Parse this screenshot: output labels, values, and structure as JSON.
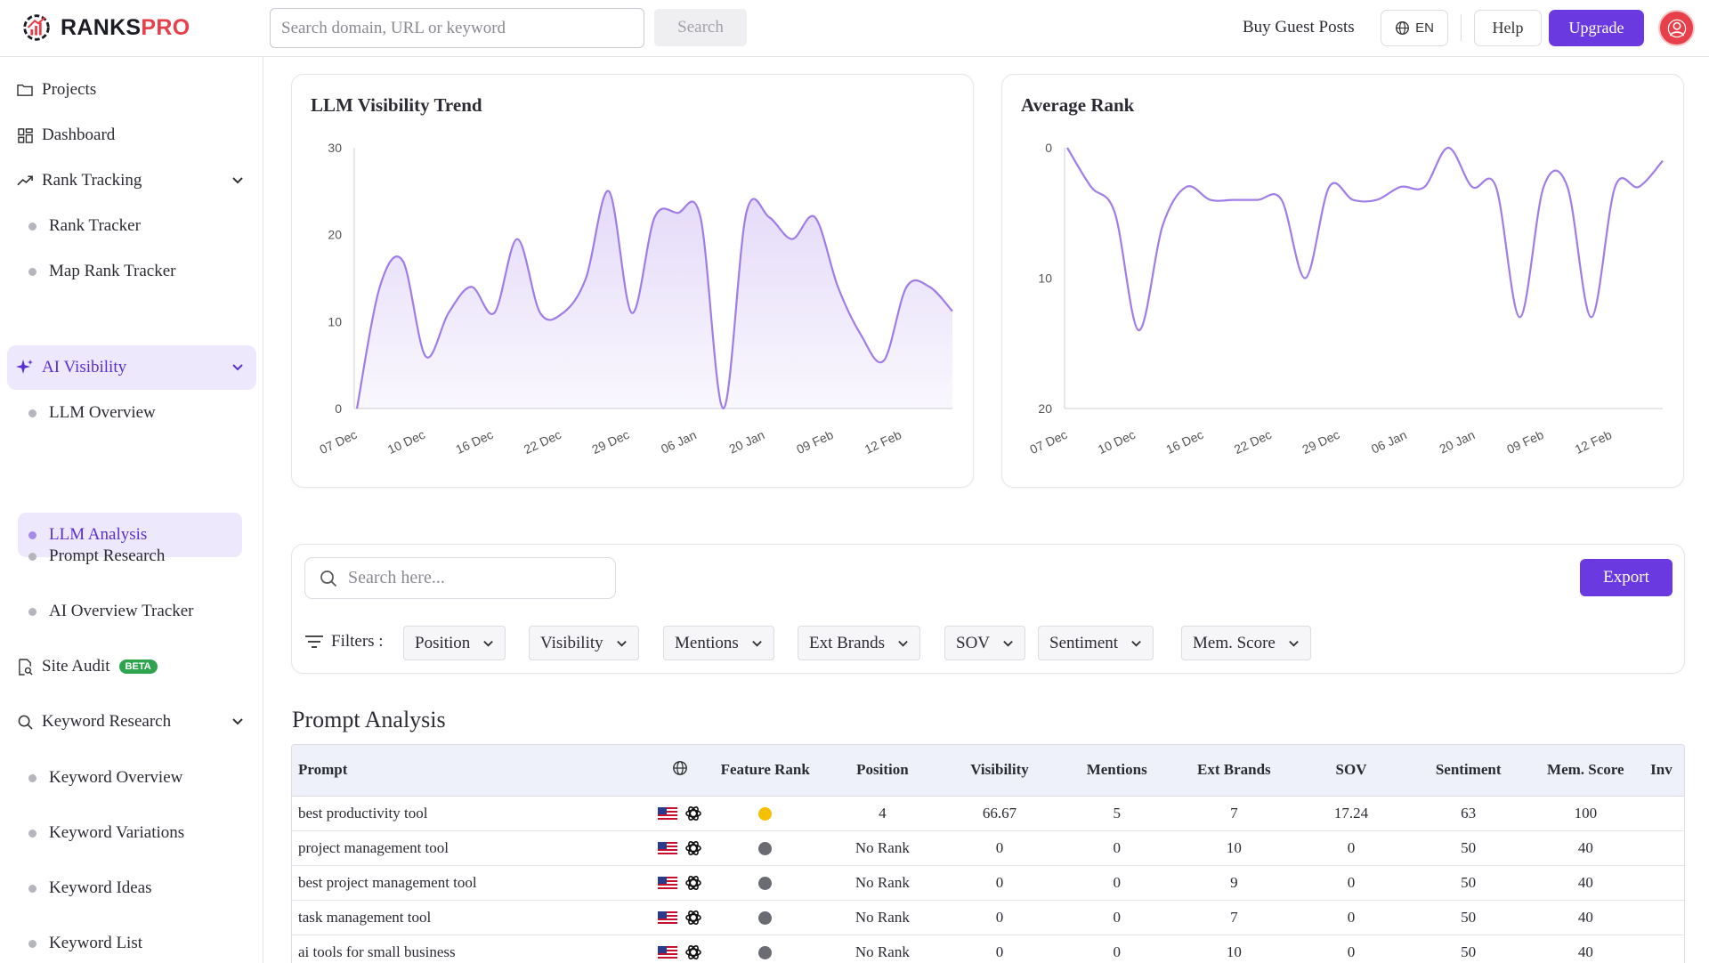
{
  "brand": {
    "name_part1": "RANKS",
    "name_part2": "PRO",
    "accent": "#e8404a",
    "primary": "#6a39e0"
  },
  "topbar": {
    "search_placeholder": "Search domain, URL or keyword",
    "search_button": "Search",
    "guest_posts": "Buy Guest Posts",
    "language": "EN",
    "help": "Help",
    "upgrade": "Upgrade"
  },
  "sidebar": {
    "projects": "Projects",
    "dashboard": "Dashboard",
    "rank_tracking": "Rank Tracking",
    "rank_tracker": "Rank Tracker",
    "map_rank_tracker": "Map Rank Tracker",
    "ai_visibility": "AI Visibility",
    "llm_overview": "LLM Overview",
    "llm_analysis": "LLM Analysis",
    "prompt_research": "Prompt Research",
    "ai_overview_tracker": "AI Overview Tracker",
    "site_audit": "Site Audit",
    "beta": "BETA",
    "keyword_research": "Keyword Research",
    "keyword_overview": "Keyword Overview",
    "keyword_variations": "Keyword Variations",
    "keyword_ideas": "Keyword Ideas",
    "keyword_list": "Keyword List"
  },
  "chart_data": [
    {
      "type": "area",
      "title": "LLM Visibility Trend",
      "x_ticks": [
        "07 Dec",
        "10 Dec",
        "16 Dec",
        "22 Dec",
        "29 Dec",
        "06 Jan",
        "20 Jan",
        "09 Feb",
        "12 Feb"
      ],
      "y_ticks": [
        "0",
        "10",
        "20",
        "30"
      ],
      "ylim": [
        0,
        30
      ],
      "color": "#a07ce8",
      "values": [
        0,
        14,
        17,
        6,
        11,
        14,
        11,
        19.5,
        11,
        11,
        15,
        25,
        11,
        22,
        22.5,
        22,
        0,
        22.5,
        22,
        19.5,
        22,
        14,
        8.5,
        5.5,
        14,
        14,
        11.2
      ]
    },
    {
      "type": "line",
      "title": "Average Rank",
      "x_ticks": [
        "07 Dec",
        "10 Dec",
        "16 Dec",
        "22 Dec",
        "29 Dec",
        "06 Jan",
        "20 Jan",
        "09 Feb",
        "12 Feb"
      ],
      "y_ticks": [
        "0",
        "10",
        "20"
      ],
      "ylim": [
        0,
        20
      ],
      "reversed": true,
      "color": "#a07ce8",
      "values": [
        0,
        3,
        5,
        14,
        6,
        3,
        4,
        4,
        4,
        4,
        10,
        3,
        4,
        4,
        3,
        3,
        0,
        3,
        3,
        13,
        3,
        3,
        13,
        3,
        3,
        1
      ]
    }
  ],
  "filters": {
    "search_placeholder": "Search here...",
    "export": "Export",
    "label": "Filters :",
    "chips": [
      "Position",
      "Visibility",
      "Mentions",
      "Ext Brands",
      "SOV",
      "Sentiment",
      "Mem. Score"
    ]
  },
  "table": {
    "title": "Prompt Analysis",
    "headers": {
      "prompt": "Prompt",
      "feature_rank": "Feature Rank",
      "position": "Position",
      "visibility": "Visibility",
      "mentions": "Mentions",
      "ext_brands": "Ext Brands",
      "sov": "SOV",
      "sentiment": "Sentiment",
      "mem_score": "Mem. Score",
      "extra": "Inv"
    },
    "rows": [
      {
        "prompt": "best productivity tool",
        "feature": "#f5c000",
        "position": "4",
        "visibility": "66.67",
        "mentions": "5",
        "ext_brands": "7",
        "sov": "17.24",
        "sentiment": "63",
        "mem_score": "100"
      },
      {
        "prompt": "project management tool",
        "feature": "#6b6b73",
        "position": "No Rank",
        "visibility": "0",
        "mentions": "0",
        "ext_brands": "10",
        "sov": "0",
        "sentiment": "50",
        "mem_score": "40"
      },
      {
        "prompt": "best project management tool",
        "feature": "#6b6b73",
        "position": "No Rank",
        "visibility": "0",
        "mentions": "0",
        "ext_brands": "9",
        "sov": "0",
        "sentiment": "50",
        "mem_score": "40"
      },
      {
        "prompt": "task management tool",
        "feature": "#6b6b73",
        "position": "No Rank",
        "visibility": "0",
        "mentions": "0",
        "ext_brands": "7",
        "sov": "0",
        "sentiment": "50",
        "mem_score": "40"
      },
      {
        "prompt": "ai tools for small business",
        "feature": "#6b6b73",
        "position": "No Rank",
        "visibility": "0",
        "mentions": "0",
        "ext_brands": "10",
        "sov": "0",
        "sentiment": "50",
        "mem_score": "40"
      }
    ]
  }
}
